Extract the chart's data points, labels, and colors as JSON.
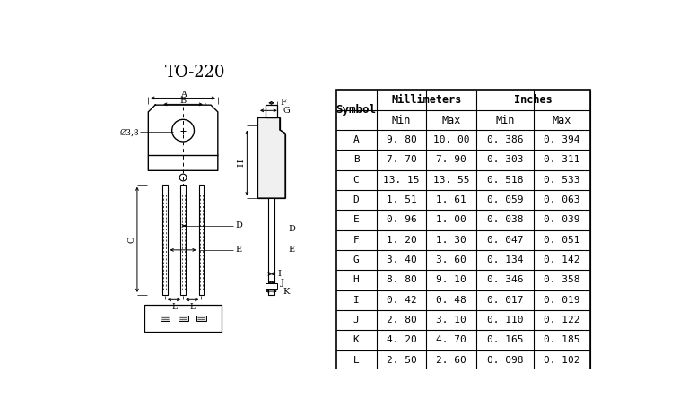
{
  "title": "TO-220",
  "bg_color": "#ffffff",
  "line_color": "#000000",
  "table_data": {
    "symbols": [
      "A",
      "B",
      "C",
      "D",
      "E",
      "F",
      "G",
      "H",
      "I",
      "J",
      "K",
      "L"
    ],
    "mm_min": [
      9.8,
      7.7,
      13.15,
      1.51,
      0.96,
      1.2,
      3.4,
      8.8,
      0.42,
      2.8,
      4.2,
      2.5
    ],
    "mm_max": [
      10.0,
      7.9,
      13.55,
      1.61,
      1.0,
      1.3,
      3.6,
      9.1,
      0.48,
      3.1,
      4.7,
      2.6
    ],
    "in_min": [
      0.386,
      0.303,
      0.518,
      0.059,
      0.038,
      0.047,
      0.134,
      0.346,
      0.017,
      0.11,
      0.165,
      0.098
    ],
    "in_max": [
      0.394,
      0.311,
      0.533,
      0.063,
      0.039,
      0.051,
      0.142,
      0.358,
      0.019,
      0.122,
      0.185,
      0.102
    ]
  }
}
